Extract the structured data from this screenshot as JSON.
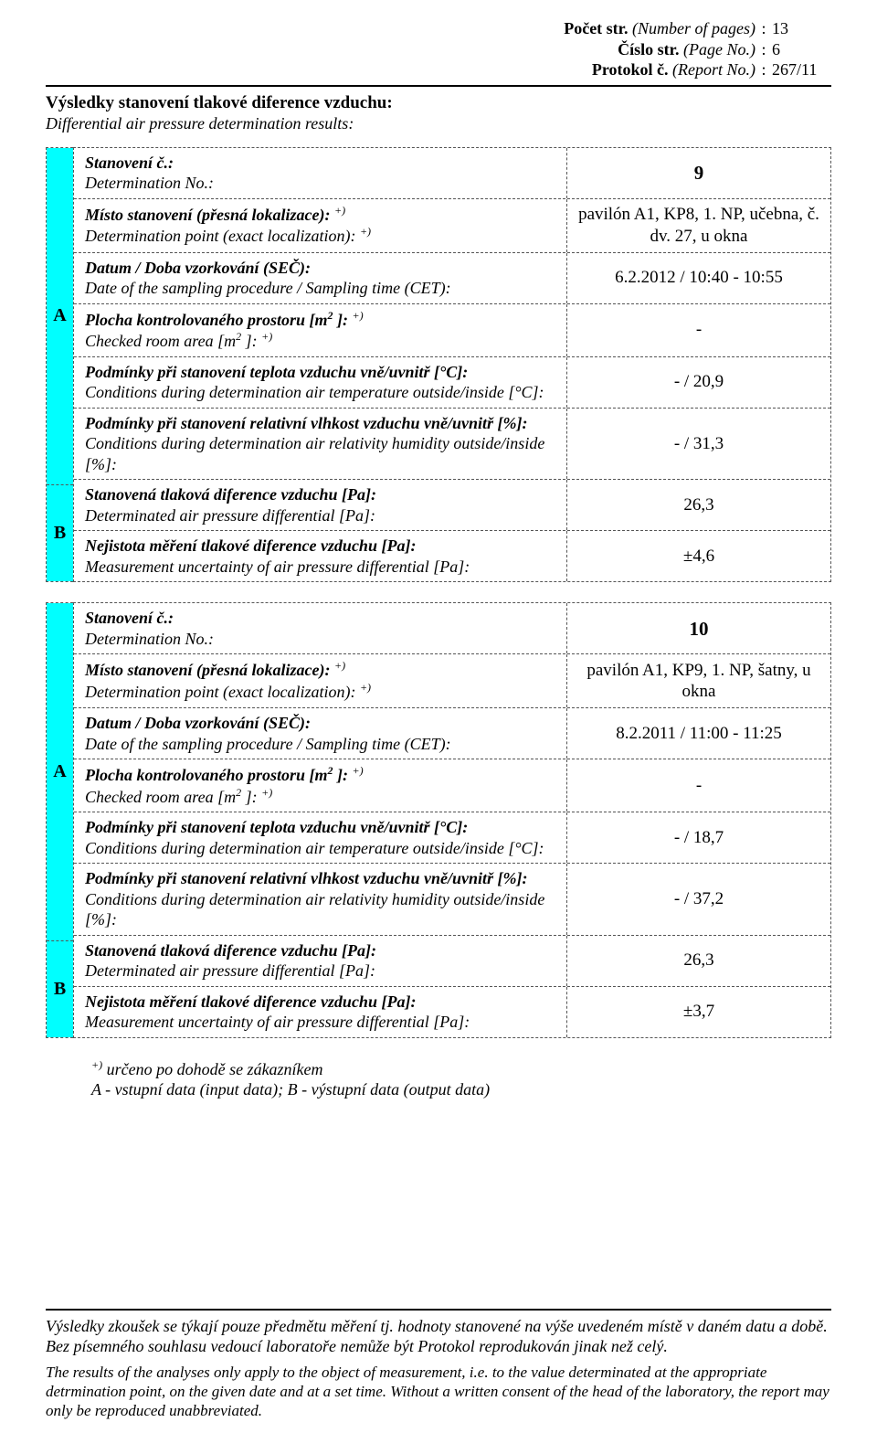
{
  "header": {
    "pages_label_cz": "Počet str.",
    "pages_label_en": "(Number of pages)",
    "pages_val": "13",
    "pageno_label_cz": "Číslo str.",
    "pageno_label_en": "(Page No.)",
    "pageno_val": "6",
    "report_label_cz": "Protokol č.",
    "report_label_en": "(Report No.)",
    "report_val": "267/11"
  },
  "title": {
    "main": "Výsledky stanovení tlakové diference vzduchu:",
    "sub": "Differential air pressure determination results:"
  },
  "labels": {
    "det_no_cz": "Stanovení č.:",
    "det_no_en": "Determination No.:",
    "loc_cz": "Místo stanovení (přesná lokalizace):",
    "loc_en": "Determination point (exact localization):",
    "date_cz": "Datum / Doba vzorkování (SEČ):",
    "date_en": "Date of  the sampling  procedure / Sampling time (CET):",
    "area_cz": "Plocha kontrolovaného prostoru  [m",
    "area_cz2": " ]:",
    "area_en": "Checked room area [m",
    "area_en2": " ]:",
    "temp_cz": "Podmínky při stanovení teplota vzduchu vně/uvnitř [°C]:",
    "temp_en": "Conditions during determination air temperature outside/inside [°C]:",
    "hum_cz": "Podmínky při stanovení relativní vlhkost vzduchu vně/uvnitř [%]:",
    "hum_en": "Conditions during determination air relativity humidity outside/inside [%]:",
    "result_cz": "Stanovená tlaková diference vzduchu [Pa]:",
    "result_en": "Determinated air pressure differential [Pa]:",
    "unc_cz": "Nejistota měření tlakové diference vzduchu [Pa]:",
    "unc_en": "Measurement uncertainty of air pressure differential [Pa]:",
    "side_a": "A",
    "side_b": "B",
    "plus_sup": "+)"
  },
  "rec1": {
    "det_no": "9",
    "loc": "pavilón A1, KP8, 1. NP, učebna, č. dv. 27, u okna",
    "date": "6.2.2012 / 10:40 - 10:55",
    "area": "-",
    "temp": "- / 20,9",
    "hum": "- / 31,3",
    "result": "26,3",
    "unc": "±4,6"
  },
  "rec2": {
    "det_no": "10",
    "loc": "pavilón A1, KP9, 1. NP, šatny, u okna",
    "date": "8.2.2011 / 11:00 - 11:25",
    "area": "-",
    "temp": "- / 18,7",
    "hum": "- / 37,2",
    "result": "26,3",
    "unc": "±3,7"
  },
  "notes": {
    "l1": " určeno po dohodě se zákazníkem",
    "l2": "A - vstupní data (input data); B - výstupní data (output data)"
  },
  "footer": {
    "cz": "Výsledky zkoušek se týkají pouze předmětu měření tj. hodnoty stanovené na výše uvedeném místě v daném datu a době. Bez písemného souhlasu vedoucí laboratoře nemůže být Protokol reprodukován jinak než celý.",
    "en": "The results of the analyses only apply to the object of measurement, i.e. to the value determinated at the appropriate detrmination point, on the given date and at a set time. Without a written consent of the head of the laboratory, the report may only be reproduced unabbreviated."
  }
}
